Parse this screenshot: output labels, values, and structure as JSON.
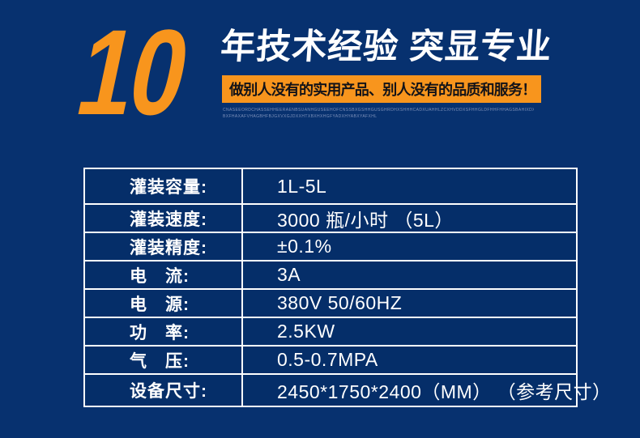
{
  "colors": {
    "background_navy": "#07316f",
    "accent_orange": "#f8951d",
    "headline_white": "#ffffff",
    "banner_text": "#131318",
    "table_border": "#ffffff",
    "fine_print": "#7e91ba"
  },
  "header": {
    "big_number": "10",
    "headline": "年技术经验 突显专业",
    "banner_slogan": "做别人没有的实用产品、别人没有的品质和服务！",
    "fine_print_line1": "CNASEEORDCHASSEHHEERAENBSUANHGUSEEHOFCNSSBXGSHHGUSGHRDHXSHHHCADXUAHHLZCXHVDDXSFHHGLDFHHFHHAGSBAHIXDXLGHNUCAGFGLHGUHCYHXDGHAHGBDXCGBNZJAKOYDDBAXCOVXDXDXHHXDDOGBHFAEGLHHFOHXOHAGHAXGSYHHAXBAYFY",
    "fine_print_line2": "BXFHAXAFVHAGBHFBJGXVXGJDXXHTXBXHXHGFYADXHYABXYAFXHLAXGJBAIGJYVHAGJVXABXHYGBXFHYABTYHFGUADX"
  },
  "spec_table": {
    "rows": [
      {
        "label": "灌装容量:",
        "value": "1L-5L"
      },
      {
        "label": "灌装速度:",
        "value": "3000 瓶/小时 （5L）"
      },
      {
        "label": "灌装精度:",
        "value": "±0.1%"
      },
      {
        "label": "电　流:",
        "value": "3A"
      },
      {
        "label": "电　源:",
        "value": "380V 50/60HZ"
      },
      {
        "label": "功　率:",
        "value": "2.5KW"
      },
      {
        "label": "气　压:",
        "value": "0.5-0.7MPA"
      },
      {
        "label": "设备尺寸:",
        "value": "2450*1750*2400（MM） （参考尺寸）"
      }
    ]
  }
}
